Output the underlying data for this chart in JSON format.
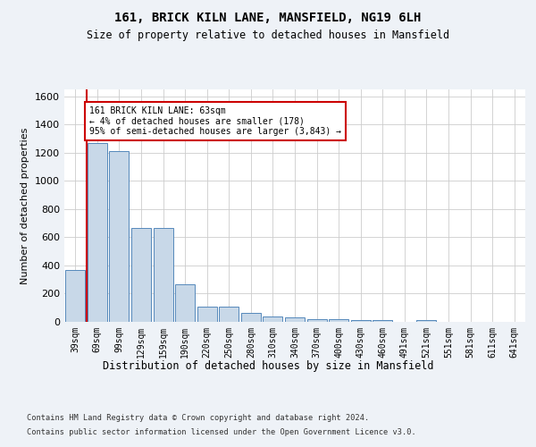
{
  "title1": "161, BRICK KILN LANE, MANSFIELD, NG19 6LH",
  "title2": "Size of property relative to detached houses in Mansfield",
  "xlabel": "Distribution of detached houses by size in Mansfield",
  "ylabel": "Number of detached properties",
  "categories": [
    "39sqm",
    "69sqm",
    "99sqm",
    "129sqm",
    "159sqm",
    "190sqm",
    "220sqm",
    "250sqm",
    "280sqm",
    "310sqm",
    "340sqm",
    "370sqm",
    "400sqm",
    "430sqm",
    "460sqm",
    "491sqm",
    "521sqm",
    "551sqm",
    "581sqm",
    "611sqm",
    "641sqm"
  ],
  "values": [
    370,
    1270,
    1215,
    665,
    665,
    265,
    110,
    110,
    65,
    40,
    30,
    20,
    20,
    15,
    15,
    0,
    15,
    0,
    0,
    0,
    0
  ],
  "bar_color": "#c8d8e8",
  "bar_edge_color": "#5588bb",
  "highlight_color": "#cc0000",
  "annotation_text_line1": "161 BRICK KILN LANE: 63sqm",
  "annotation_text_line2": "← 4% of detached houses are smaller (178)",
  "annotation_text_line3": "95% of semi-detached houses are larger (3,843) →",
  "ylim": [
    0,
    1650
  ],
  "yticks": [
    0,
    200,
    400,
    600,
    800,
    1000,
    1200,
    1400,
    1600
  ],
  "footer1": "Contains HM Land Registry data © Crown copyright and database right 2024.",
  "footer2": "Contains public sector information licensed under the Open Government Licence v3.0.",
  "bg_color": "#eef2f7",
  "plot_bg_color": "#ffffff",
  "grid_color": "#cccccc"
}
